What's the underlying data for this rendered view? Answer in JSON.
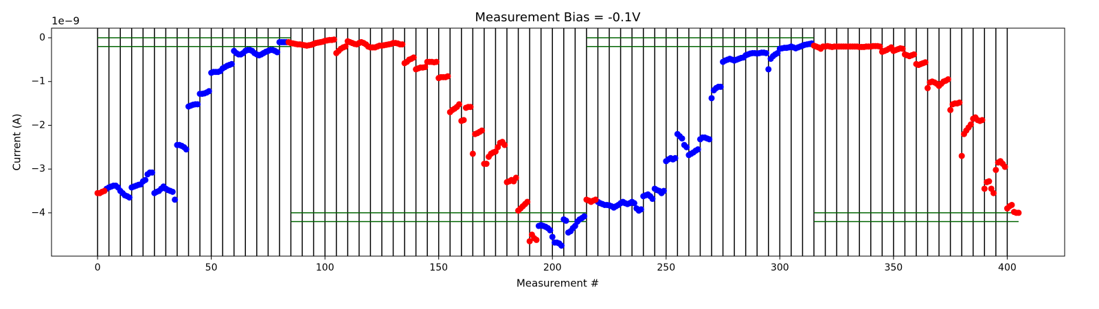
{
  "chart_data": {
    "type": "scatter",
    "title": "Measurement Bias = -0.1V",
    "x_label": "Measurement #",
    "y_label": "Current (A)",
    "y_offset_label": "1e−9",
    "xlim": [
      -20.25,
      425.25
    ],
    "ylim": [
      -4.99,
      0.22
    ],
    "xticks": [
      0,
      50,
      100,
      150,
      200,
      250,
      300,
      350,
      400
    ],
    "yticks": [
      0,
      {
        "value": -1,
        "label": "−1"
      },
      {
        "value": -2,
        "label": "−2"
      },
      {
        "value": -3,
        "label": "−3"
      },
      {
        "value": -4,
        "label": "−4"
      }
    ],
    "vline_color": "#000000",
    "vlines": [
      0,
      5,
      10,
      15,
      20,
      25,
      30,
      35,
      40,
      45,
      50,
      55,
      60,
      65,
      70,
      75,
      80,
      85,
      90,
      95,
      100,
      105,
      110,
      115,
      120,
      125,
      130,
      135,
      140,
      145,
      150,
      155,
      160,
      165,
      170,
      175,
      180,
      185,
      190,
      195,
      200,
      205,
      210,
      215,
      220,
      225,
      230,
      235,
      240,
      245,
      250,
      255,
      260,
      265,
      270,
      275,
      280,
      285,
      290,
      295,
      300,
      305,
      310,
      315,
      320,
      325,
      330,
      335,
      340,
      345,
      350,
      355,
      360,
      365,
      370,
      375,
      380,
      385,
      390,
      395,
      400
    ],
    "hline_color": "#006400",
    "hlines": [
      {
        "y": 0,
        "x": [
          0,
          85
        ]
      },
      {
        "y": -0.2,
        "x": [
          0,
          85
        ]
      },
      {
        "y": -4,
        "x": [
          85,
          215
        ]
      },
      {
        "y": -4.2,
        "x": [
          85,
          215
        ]
      },
      {
        "y": 0,
        "x": [
          215,
          315
        ]
      },
      {
        "y": -0.2,
        "x": [
          215,
          315
        ]
      },
      {
        "y": -4,
        "x": [
          315,
          405
        ]
      },
      {
        "y": -4.2,
        "x": [
          315,
          405
        ]
      }
    ],
    "series": [
      {
        "color": "#0000ff",
        "x": [
          4,
          5,
          6,
          7,
          8,
          9,
          10,
          11,
          12,
          13,
          14,
          15,
          16,
          17,
          18,
          19,
          20,
          21,
          22,
          23,
          24,
          25,
          26,
          27,
          28,
          29,
          30,
          31,
          32,
          33,
          34,
          35,
          36,
          37,
          38,
          39,
          40,
          41,
          42,
          43,
          44,
          45,
          46,
          47,
          48,
          49,
          50,
          51,
          52,
          53,
          54,
          55,
          56,
          57,
          58,
          59,
          60,
          61,
          62,
          63,
          64,
          65,
          66,
          67,
          68,
          69,
          70,
          71,
          72,
          73,
          74,
          75,
          76,
          77,
          78,
          79,
          80,
          81,
          82,
          83,
          194,
          195,
          196,
          197,
          198,
          199,
          200,
          201,
          202,
          203,
          204,
          205,
          206,
          207,
          208,
          209,
          210,
          211,
          212,
          213,
          214,
          220,
          221,
          222,
          223,
          224,
          225,
          226,
          227,
          228,
          229,
          230,
          231,
          232,
          233,
          234,
          235,
          236,
          237,
          238,
          239,
          240,
          241,
          242,
          243,
          244,
          245,
          246,
          247,
          248,
          249,
          250,
          251,
          252,
          253,
          254,
          255,
          256,
          257,
          258,
          259,
          260,
          261,
          262,
          263,
          264,
          265,
          266,
          267,
          268,
          269,
          270,
          271,
          272,
          273,
          274,
          275,
          276,
          277,
          278,
          279,
          280,
          281,
          282,
          283,
          284,
          285,
          286,
          287,
          288,
          289,
          290,
          291,
          292,
          293,
          294,
          295,
          296,
          297,
          298,
          299,
          300,
          301,
          302,
          303,
          304,
          305,
          306,
          307,
          308,
          309,
          310,
          311,
          312,
          313,
          314
        ],
        "values": [
          -3.45,
          -3.42,
          -3.4,
          -3.38,
          -3.38,
          -3.42,
          -3.5,
          -3.55,
          -3.6,
          -3.62,
          -3.65,
          -3.42,
          -3.4,
          -3.38,
          -3.36,
          -3.35,
          -3.28,
          -3.25,
          -3.12,
          -3.08,
          -3.08,
          -3.55,
          -3.52,
          -3.5,
          -3.45,
          -3.4,
          -3.45,
          -3.48,
          -3.5,
          -3.52,
          -3.7,
          -2.45,
          -2.45,
          -2.47,
          -2.5,
          -2.55,
          -1.57,
          -1.55,
          -1.53,
          -1.52,
          -1.52,
          -1.28,
          -1.28,
          -1.27,
          -1.25,
          -1.22,
          -0.8,
          -0.78,
          -0.78,
          -0.78,
          -0.76,
          -0.7,
          -0.67,
          -0.64,
          -0.62,
          -0.6,
          -0.3,
          -0.35,
          -0.38,
          -0.38,
          -0.35,
          -0.3,
          -0.28,
          -0.28,
          -0.3,
          -0.35,
          -0.38,
          -0.4,
          -0.38,
          -0.35,
          -0.32,
          -0.3,
          -0.28,
          -0.28,
          -0.3,
          -0.33,
          -0.1,
          -0.1,
          -0.1,
          -0.1,
          -4.3,
          -4.28,
          -4.3,
          -4.32,
          -4.35,
          -4.4,
          -4.55,
          -4.68,
          -4.68,
          -4.7,
          -4.75,
          -4.15,
          -4.18,
          -4.45,
          -4.42,
          -4.35,
          -4.3,
          -4.2,
          -4.15,
          -4.12,
          -4.08,
          -3.75,
          -3.78,
          -3.8,
          -3.82,
          -3.82,
          -3.83,
          -3.85,
          -3.88,
          -3.85,
          -3.82,
          -3.78,
          -3.75,
          -3.78,
          -3.8,
          -3.78,
          -3.75,
          -3.78,
          -3.9,
          -3.95,
          -3.92,
          -3.62,
          -3.6,
          -3.58,
          -3.62,
          -3.68,
          -3.45,
          -3.48,
          -3.5,
          -3.55,
          -3.5,
          -2.82,
          -2.78,
          -2.75,
          -2.78,
          -2.75,
          -2.2,
          -2.25,
          -2.3,
          -2.45,
          -2.5,
          -2.68,
          -2.65,
          -2.62,
          -2.58,
          -2.55,
          -2.32,
          -2.28,
          -2.28,
          -2.3,
          -2.32,
          -1.38,
          -1.2,
          -1.15,
          -1.12,
          -1.12,
          -0.55,
          -0.52,
          -0.5,
          -0.48,
          -0.5,
          -0.52,
          -0.5,
          -0.48,
          -0.46,
          -0.45,
          -0.4,
          -0.38,
          -0.36,
          -0.35,
          -0.35,
          -0.36,
          -0.35,
          -0.34,
          -0.34,
          -0.35,
          -0.72,
          -0.48,
          -0.42,
          -0.38,
          -0.35,
          -0.25,
          -0.24,
          -0.23,
          -0.23,
          -0.22,
          -0.2,
          -0.22,
          -0.24,
          -0.22,
          -0.2,
          -0.18,
          -0.16,
          -0.15,
          -0.14,
          -0.13
        ]
      },
      {
        "color": "#ff0000",
        "x": [
          0,
          1,
          2,
          3,
          84,
          85,
          86,
          87,
          88,
          89,
          90,
          91,
          92,
          93,
          94,
          95,
          96,
          97,
          98,
          99,
          100,
          101,
          102,
          103,
          104,
          105,
          106,
          107,
          108,
          109,
          110,
          111,
          112,
          113,
          114,
          115,
          116,
          117,
          118,
          119,
          120,
          121,
          122,
          123,
          124,
          125,
          126,
          127,
          128,
          129,
          130,
          131,
          132,
          133,
          134,
          135,
          136,
          137,
          138,
          139,
          140,
          141,
          142,
          143,
          144,
          145,
          146,
          147,
          148,
          149,
          150,
          151,
          152,
          153,
          154,
          155,
          156,
          157,
          158,
          159,
          160,
          161,
          162,
          163,
          164,
          165,
          166,
          167,
          168,
          169,
          170,
          171,
          172,
          173,
          174,
          175,
          176,
          177,
          178,
          179,
          180,
          181,
          182,
          183,
          184,
          185,
          186,
          187,
          188,
          189,
          190,
          191,
          192,
          193,
          215,
          216,
          217,
          218,
          219,
          315,
          316,
          317,
          318,
          319,
          320,
          321,
          322,
          323,
          324,
          325,
          326,
          327,
          328,
          329,
          330,
          331,
          332,
          333,
          334,
          335,
          336,
          337,
          338,
          339,
          340,
          341,
          342,
          343,
          344,
          345,
          346,
          347,
          348,
          349,
          350,
          351,
          352,
          353,
          354,
          355,
          356,
          357,
          358,
          359,
          360,
          361,
          362,
          363,
          364,
          365,
          366,
          367,
          368,
          369,
          370,
          371,
          372,
          373,
          374,
          375,
          376,
          377,
          378,
          379,
          380,
          381,
          382,
          383,
          384,
          385,
          386,
          387,
          388,
          389,
          390,
          391,
          392,
          393,
          394,
          395,
          396,
          397,
          398,
          399,
          400,
          401,
          402,
          403,
          404,
          405
        ],
        "values": [
          -3.55,
          -3.55,
          -3.52,
          -3.5,
          -0.1,
          -0.12,
          -0.13,
          -0.14,
          -0.15,
          -0.15,
          -0.16,
          -0.17,
          -0.18,
          -0.17,
          -0.16,
          -0.14,
          -0.12,
          -0.11,
          -0.1,
          -0.09,
          -0.07,
          -0.06,
          -0.05,
          -0.05,
          -0.04,
          -0.35,
          -0.3,
          -0.25,
          -0.22,
          -0.2,
          -0.08,
          -0.1,
          -0.12,
          -0.14,
          -0.15,
          -0.12,
          -0.1,
          -0.12,
          -0.15,
          -0.2,
          -0.22,
          -0.22,
          -0.22,
          -0.2,
          -0.18,
          -0.18,
          -0.17,
          -0.16,
          -0.15,
          -0.14,
          -0.12,
          -0.12,
          -0.13,
          -0.15,
          -0.15,
          -0.58,
          -0.55,
          -0.5,
          -0.48,
          -0.45,
          -0.72,
          -0.7,
          -0.68,
          -0.68,
          -0.67,
          -0.55,
          -0.55,
          -0.55,
          -0.56,
          -0.55,
          -0.92,
          -0.9,
          -0.9,
          -0.9,
          -0.88,
          -1.7,
          -1.65,
          -1.62,
          -1.58,
          -1.52,
          -1.9,
          -1.88,
          -1.6,
          -1.58,
          -1.58,
          -2.65,
          -2.2,
          -2.18,
          -2.15,
          -2.12,
          -2.88,
          -2.88,
          -2.72,
          -2.65,
          -2.62,
          -2.6,
          -2.5,
          -2.4,
          -2.38,
          -2.45,
          -3.3,
          -3.28,
          -3.25,
          -3.28,
          -3.2,
          -3.95,
          -3.9,
          -3.85,
          -3.8,
          -3.75,
          -4.65,
          -4.5,
          -4.58,
          -4.62,
          -3.7,
          -3.72,
          -3.75,
          -3.72,
          -3.7,
          -0.18,
          -0.2,
          -0.22,
          -0.25,
          -0.2,
          -0.2,
          -0.19,
          -0.2,
          -0.21,
          -0.2,
          -0.2,
          -0.2,
          -0.2,
          -0.2,
          -0.2,
          -0.2,
          -0.2,
          -0.2,
          -0.2,
          -0.2,
          -0.21,
          -0.21,
          -0.21,
          -0.2,
          -0.2,
          -0.2,
          -0.19,
          -0.19,
          -0.19,
          -0.2,
          -0.32,
          -0.3,
          -0.28,
          -0.25,
          -0.22,
          -0.3,
          -0.28,
          -0.26,
          -0.24,
          -0.25,
          -0.38,
          -0.4,
          -0.42,
          -0.4,
          -0.38,
          -0.6,
          -0.62,
          -0.6,
          -0.58,
          -0.56,
          -1.15,
          -1.02,
          -1.0,
          -1.02,
          -1.05,
          -1.1,
          -1.05,
          -1.0,
          -0.98,
          -0.95,
          -1.65,
          -1.52,
          -1.5,
          -1.5,
          -1.48,
          -2.7,
          -2.2,
          -2.12,
          -2.05,
          -1.98,
          -1.85,
          -1.82,
          -1.88,
          -1.9,
          -1.88,
          -3.45,
          -3.3,
          -3.28,
          -3.45,
          -3.55,
          -3.02,
          -2.85,
          -2.82,
          -2.88,
          -2.95,
          -3.9,
          -3.85,
          -3.82,
          -3.98,
          -4.0,
          -4.0
        ]
      }
    ]
  }
}
